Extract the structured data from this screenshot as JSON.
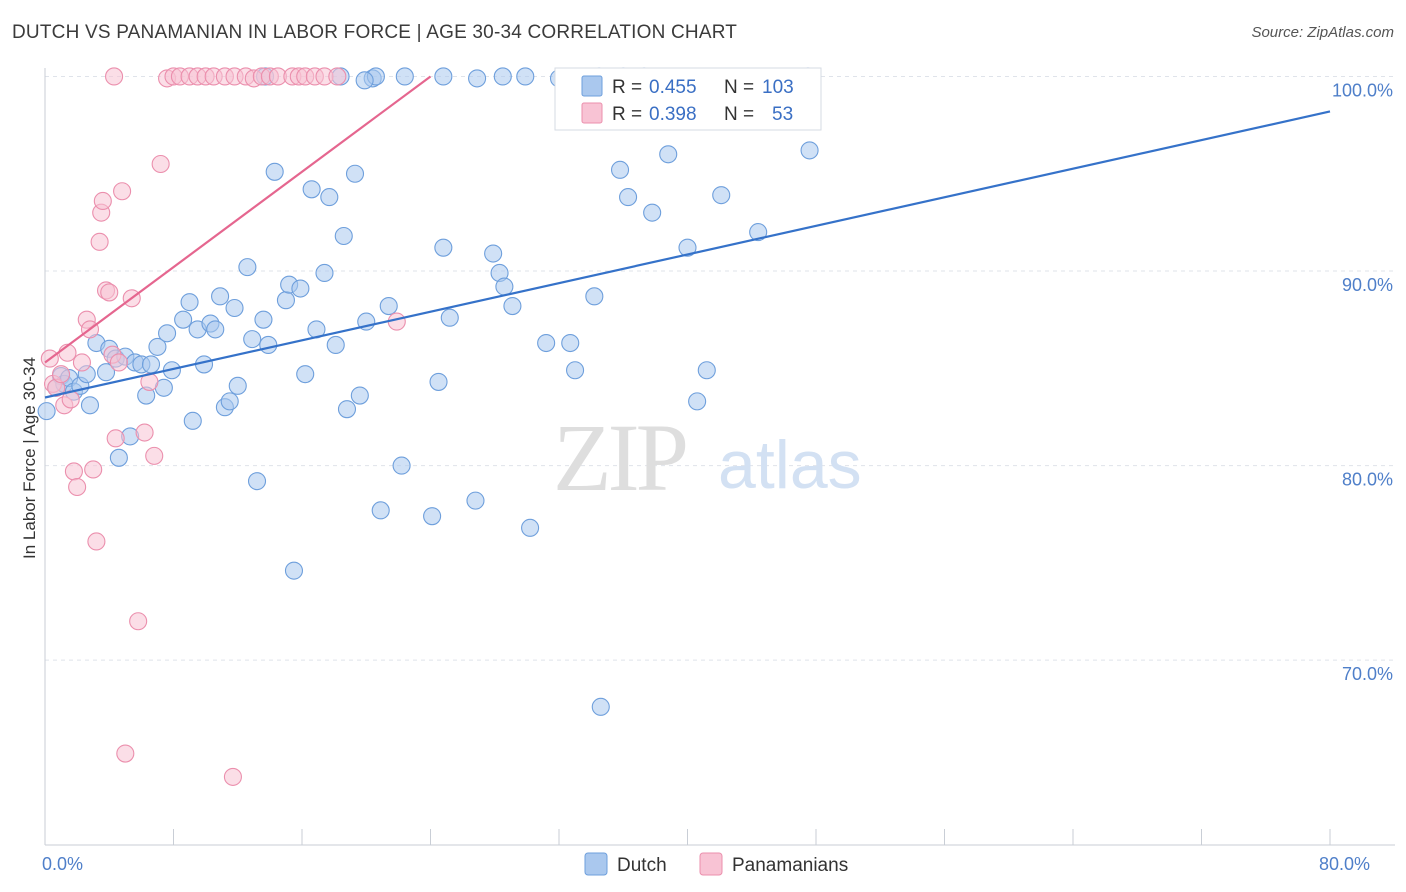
{
  "title": "DUTCH VS PANAMANIAN IN LABOR FORCE | AGE 30-34 CORRELATION CHART",
  "source": "Source: ZipAtlas.com",
  "watermark": {
    "part1": "ZIP",
    "part2": "atlas"
  },
  "colors": {
    "dutch_fill": "#aac8ee",
    "dutch_stroke": "#6e9fdc",
    "dutch_line": "#3572c9",
    "pan_fill": "#f8c3d4",
    "pan_stroke": "#eb8fad",
    "pan_line": "#e5668f",
    "tick_text": "#4f7fc9",
    "grid": "#dfe3ea"
  },
  "legend_stats": {
    "rows": [
      {
        "r_label": "R =",
        "r_value": "0.455",
        "n_label": "N =",
        "n_value": "103"
      },
      {
        "r_label": "R =",
        "r_value": "0.398",
        "n_label": "N =",
        "n_value": "53"
      }
    ]
  },
  "chart_data": {
    "type": "scatter",
    "title": "DUTCH VS PANAMANIAN IN LABOR FORCE | AGE 30-34 CORRELATION CHART",
    "xlabel": "",
    "ylabel": "In Labor Force | Age 30-34",
    "xlim": [
      0,
      80
    ],
    "ylim": [
      60.5,
      101
    ],
    "x_ticks": [
      {
        "v": 0,
        "label": "0.0%"
      },
      {
        "v": 80,
        "label": "80.0%"
      }
    ],
    "y_ticks": [
      {
        "v": 70,
        "label": "70.0%"
      },
      {
        "v": 80,
        "label": "80.0%"
      },
      {
        "v": 90,
        "label": "90.0%"
      },
      {
        "v": 100,
        "label": "100.0%"
      }
    ],
    "grid": true,
    "legend_position": "bottom-center",
    "series": [
      {
        "name": "Dutch",
        "trend": {
          "x": [
            0,
            80
          ],
          "y": [
            83.5,
            98.2
          ]
        },
        "points": [
          [
            0.1,
            82.8
          ],
          [
            0.7,
            84.0
          ],
          [
            1.0,
            84.6
          ],
          [
            1.2,
            84.2
          ],
          [
            1.5,
            84.5
          ],
          [
            1.8,
            83.8
          ],
          [
            2.2,
            84.1
          ],
          [
            2.6,
            84.7
          ],
          [
            2.8,
            83.1
          ],
          [
            3.2,
            86.3
          ],
          [
            3.8,
            84.8
          ],
          [
            4.0,
            86.0
          ],
          [
            4.4,
            85.5
          ],
          [
            4.6,
            80.4
          ],
          [
            5.0,
            85.6
          ],
          [
            5.3,
            81.5
          ],
          [
            5.6,
            85.3
          ],
          [
            6.0,
            85.2
          ],
          [
            6.3,
            83.6
          ],
          [
            6.6,
            85.2
          ],
          [
            7.0,
            86.1
          ],
          [
            7.4,
            84.0
          ],
          [
            7.6,
            86.8
          ],
          [
            7.9,
            84.9
          ],
          [
            8.6,
            87.5
          ],
          [
            9.0,
            88.4
          ],
          [
            9.2,
            82.3
          ],
          [
            9.5,
            87.0
          ],
          [
            9.9,
            85.2
          ],
          [
            10.3,
            87.3
          ],
          [
            10.6,
            87.0
          ],
          [
            10.9,
            88.7
          ],
          [
            11.2,
            83.0
          ],
          [
            11.5,
            83.3
          ],
          [
            11.8,
            88.1
          ],
          [
            12.0,
            84.1
          ],
          [
            12.6,
            90.2
          ],
          [
            12.9,
            86.5
          ],
          [
            13.2,
            79.2
          ],
          [
            13.6,
            87.5
          ],
          [
            13.9,
            86.2
          ],
          [
            14.3,
            95.1
          ],
          [
            15.0,
            88.5
          ],
          [
            15.2,
            89.3
          ],
          [
            15.5,
            74.6
          ],
          [
            15.9,
            89.1
          ],
          [
            16.2,
            84.7
          ],
          [
            16.6,
            94.2
          ],
          [
            16.9,
            87.0
          ],
          [
            17.4,
            89.9
          ],
          [
            17.7,
            93.8
          ],
          [
            18.1,
            86.2
          ],
          [
            18.6,
            91.8
          ],
          [
            18.8,
            82.9
          ],
          [
            19.3,
            95.0
          ],
          [
            19.6,
            83.6
          ],
          [
            20.0,
            87.4
          ],
          [
            20.4,
            99.9
          ],
          [
            20.9,
            77.7
          ],
          [
            21.4,
            88.2
          ],
          [
            22.2,
            80.0
          ],
          [
            24.1,
            77.4
          ],
          [
            24.5,
            84.3
          ],
          [
            24.8,
            91.2
          ],
          [
            25.2,
            87.6
          ],
          [
            26.8,
            78.2
          ],
          [
            26.9,
            99.9
          ],
          [
            27.9,
            90.9
          ],
          [
            28.3,
            89.9
          ],
          [
            28.6,
            89.2
          ],
          [
            29.1,
            88.2
          ],
          [
            30.2,
            76.8
          ],
          [
            31.2,
            86.3
          ],
          [
            32.0,
            99.9
          ],
          [
            32.7,
            86.3
          ],
          [
            33.0,
            84.9
          ],
          [
            34.2,
            88.7
          ],
          [
            34.6,
            67.6
          ],
          [
            35.8,
            95.2
          ],
          [
            36.3,
            93.8
          ],
          [
            37.7,
            99.6
          ],
          [
            37.8,
            93.0
          ],
          [
            38.8,
            96.0
          ],
          [
            40.0,
            91.2
          ],
          [
            40.6,
            83.3
          ],
          [
            41.2,
            84.9
          ],
          [
            42.1,
            93.9
          ],
          [
            44.4,
            92.0
          ],
          [
            47.6,
            96.2
          ],
          [
            33.5,
            99.0
          ],
          [
            36.0,
            100.0
          ],
          [
            24.8,
            100.0
          ],
          [
            22.4,
            100.0
          ],
          [
            28.5,
            100.0
          ],
          [
            20.6,
            100.0
          ],
          [
            29.9,
            100.0
          ],
          [
            37.3,
            100.0
          ],
          [
            47.5,
            100.0
          ],
          [
            37.0,
            98.5
          ],
          [
            34.5,
            100.0
          ],
          [
            19.9,
            99.8
          ],
          [
            18.4,
            100.0
          ],
          [
            13.7,
            100.0
          ]
        ]
      },
      {
        "name": "Panamanians",
        "trend": {
          "x": [
            0,
            24
          ],
          "y": [
            85.3,
            100
          ]
        },
        "points": [
          [
            0.3,
            85.5
          ],
          [
            0.5,
            84.2
          ],
          [
            0.7,
            84.0
          ],
          [
            1.0,
            84.7
          ],
          [
            1.2,
            83.1
          ],
          [
            1.4,
            85.8
          ],
          [
            1.6,
            83.4
          ],
          [
            1.8,
            79.7
          ],
          [
            2.0,
            78.9
          ],
          [
            2.3,
            85.3
          ],
          [
            2.6,
            87.5
          ],
          [
            2.8,
            87.0
          ],
          [
            3.0,
            79.8
          ],
          [
            3.2,
            76.1
          ],
          [
            3.4,
            91.5
          ],
          [
            3.5,
            93.0
          ],
          [
            3.6,
            93.6
          ],
          [
            3.8,
            89.0
          ],
          [
            4.0,
            88.9
          ],
          [
            4.2,
            85.7
          ],
          [
            4.4,
            81.4
          ],
          [
            4.6,
            85.3
          ],
          [
            4.8,
            94.1
          ],
          [
            5.0,
            65.2
          ],
          [
            5.4,
            88.6
          ],
          [
            5.8,
            72.0
          ],
          [
            6.2,
            81.7
          ],
          [
            6.5,
            84.3
          ],
          [
            6.8,
            80.5
          ],
          [
            7.2,
            95.5
          ],
          [
            7.6,
            99.9
          ],
          [
            8.0,
            100.0
          ],
          [
            8.4,
            100.0
          ],
          [
            9.0,
            100.0
          ],
          [
            9.5,
            100.0
          ],
          [
            10.0,
            100.0
          ],
          [
            10.5,
            100.0
          ],
          [
            11.2,
            100.0
          ],
          [
            11.8,
            100.0
          ],
          [
            12.5,
            100.0
          ],
          [
            13.0,
            99.9
          ],
          [
            13.5,
            100.0
          ],
          [
            14.0,
            100.0
          ],
          [
            14.5,
            100.0
          ],
          [
            15.4,
            100.0
          ],
          [
            15.8,
            100.0
          ],
          [
            16.2,
            100.0
          ],
          [
            16.8,
            100.0
          ],
          [
            17.4,
            100.0
          ],
          [
            18.2,
            100.0
          ],
          [
            21.9,
            87.4
          ],
          [
            11.7,
            64.0
          ],
          [
            4.3,
            100.0
          ]
        ]
      }
    ]
  }
}
